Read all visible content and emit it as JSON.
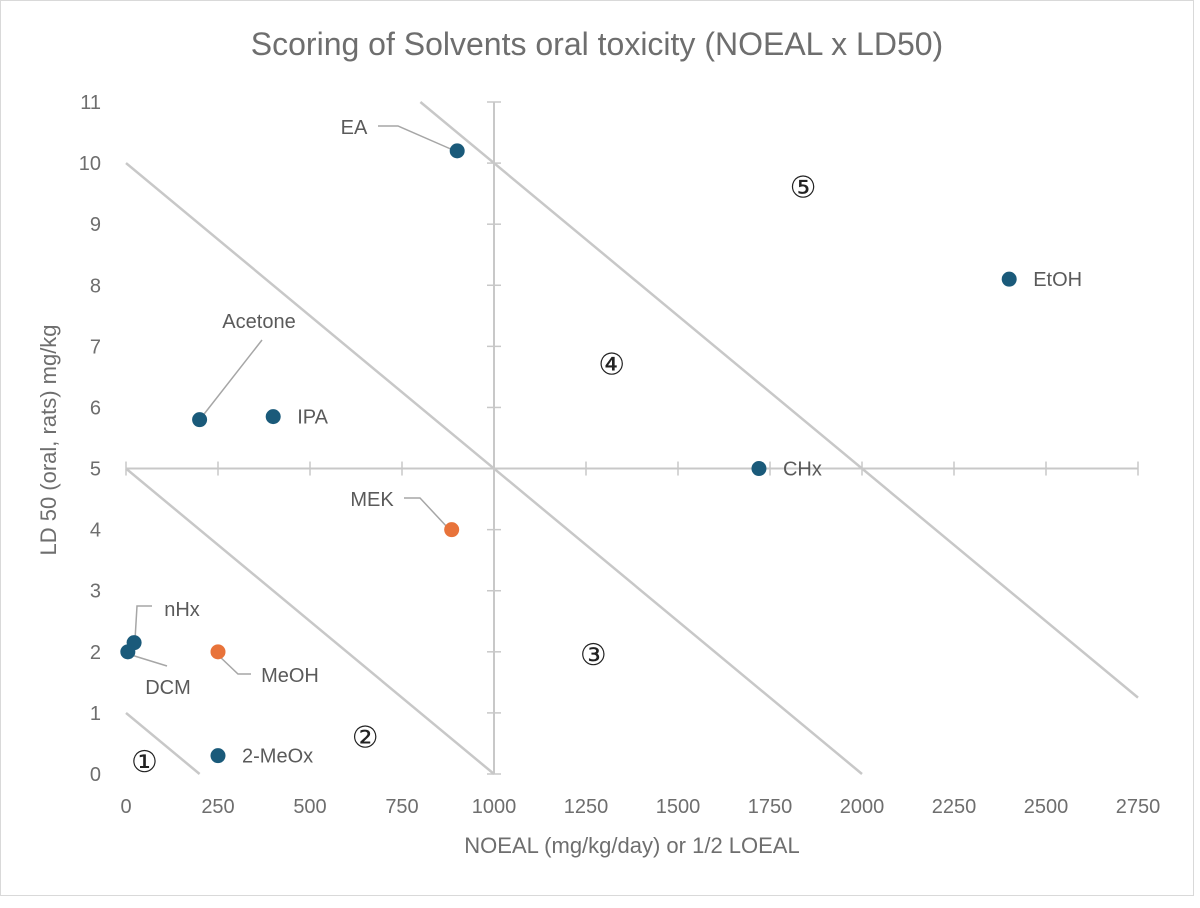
{
  "chart_data": {
    "type": "scatter",
    "title": "Scoring of Solvents oral toxicity (NOEAL x LD50)",
    "xlabel": "NOEAL (mg/kg/day) or 1/2 LOEAL",
    "ylabel": "LD 50 (oral, rats) mg/kg",
    "xlim": [
      0,
      2750
    ],
    "ylim": [
      0,
      11
    ],
    "x_ticks": [
      "0",
      "250",
      "500",
      "750",
      "1000",
      "1250",
      "1500",
      "1750",
      "2000",
      "2250",
      "2500",
      "2750"
    ],
    "y_ticks": [
      "0",
      "1",
      "2",
      "3",
      "4",
      "5",
      "6",
      "7",
      "8",
      "9",
      "10",
      "11"
    ],
    "grid": false,
    "crossing_axes": {
      "x_at_y": 5,
      "y_at_x": 1000
    },
    "colors": {
      "blue": "#1a5a7a",
      "orange": "#e8733a",
      "guide": "#c8c8c8",
      "axis": "#c8c8c8"
    },
    "points": [
      {
        "name": "EA",
        "x": 900,
        "y": 10.2,
        "color": "blue"
      },
      {
        "name": "EtOH",
        "x": 2400,
        "y": 8.1,
        "color": "blue"
      },
      {
        "name": "Acetone",
        "x": 200,
        "y": 5.8,
        "color": "blue"
      },
      {
        "name": "IPA",
        "x": 400,
        "y": 5.85,
        "color": "blue"
      },
      {
        "name": "CHx",
        "x": 1720,
        "y": 5.0,
        "color": "blue"
      },
      {
        "name": "MEK",
        "x": 885,
        "y": 4.0,
        "color": "orange"
      },
      {
        "name": "nHx",
        "x": 22,
        "y": 2.15,
        "color": "blue"
      },
      {
        "name": "DCM",
        "x": 5,
        "y": 2.0,
        "color": "blue"
      },
      {
        "name": "MeOH",
        "x": 250,
        "y": 2.0,
        "color": "orange"
      },
      {
        "name": "2-MeOx",
        "x": 250,
        "y": 0.3,
        "color": "blue"
      }
    ],
    "guide_lines": [
      {
        "x1": 0,
        "y1": 1,
        "x2": 200,
        "y2": 0
      },
      {
        "x1": 0,
        "y1": 5,
        "x2": 1000,
        "y2": 0
      },
      {
        "x1": 0,
        "y1": 10,
        "x2": 1000,
        "y2": 5
      },
      {
        "x1": 1000,
        "y1": 5,
        "x2": 2000,
        "y2": 0
      },
      {
        "x1": 800,
        "y1": 11,
        "x2": 2750,
        "y2": 1.25
      }
    ],
    "zones": [
      {
        "label": "①",
        "x": 50,
        "y": 0.2
      },
      {
        "label": "②",
        "x": 650,
        "y": 0.6
      },
      {
        "label": "③",
        "x": 1270,
        "y": 1.95
      },
      {
        "label": "④",
        "x": 1320,
        "y": 6.7
      },
      {
        "label": "⑤",
        "x": 1840,
        "y": 9.6
      }
    ]
  }
}
